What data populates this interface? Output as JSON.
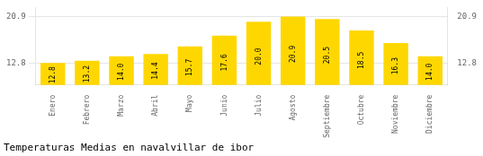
{
  "chart_data": {
    "type": "bar",
    "title": "Temperaturas Medias en navalvillar de ibor",
    "categories": [
      "Enero",
      "Febrero",
      "Marzo",
      "Abril",
      "Mayo",
      "Junio",
      "Julio",
      "Agosto",
      "Septiembre",
      "Octubre",
      "Noviembre",
      "Diciembre"
    ],
    "values": [
      12.8,
      13.2,
      14.0,
      14.4,
      15.7,
      17.6,
      20.0,
      20.9,
      20.5,
      18.5,
      16.3,
      14.0
    ],
    "value_labels": [
      "12.8",
      "13.2",
      "14.0",
      "14.4",
      "15.7",
      "17.6",
      "20.0",
      "20.9",
      "20.5",
      "18.5",
      "16.3",
      "14.0"
    ],
    "color": "#FFD700",
    "ylim": [
      9.0,
      22.5
    ],
    "yticks": [
      12.8,
      20.9
    ],
    "y2lim": [
      9.0,
      22.5
    ],
    "y2ticks": [
      12.8,
      20.9
    ],
    "grid": true,
    "data_labels": true
  }
}
